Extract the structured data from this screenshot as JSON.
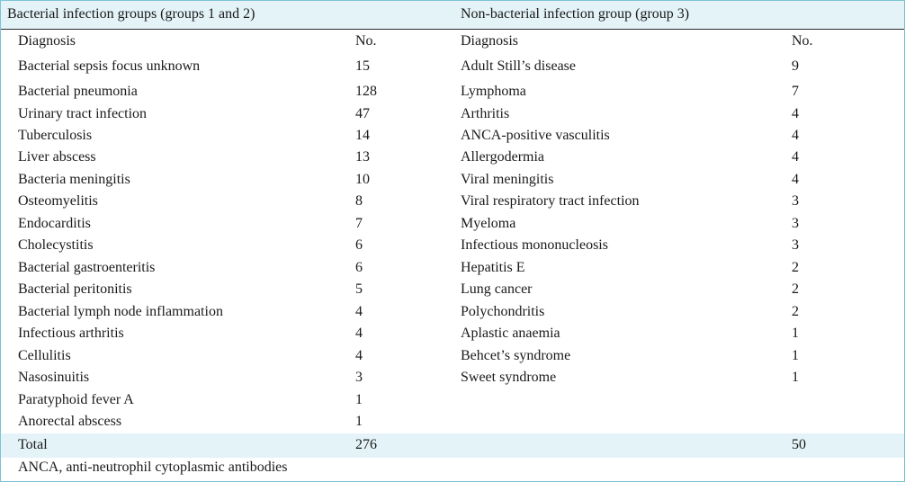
{
  "table": {
    "group_headers": {
      "left": "Bacterial infection groups (groups 1 and 2)",
      "right": "Non-bacterial infection group (group 3)"
    },
    "column_headers": {
      "diagnosis": "Diagnosis",
      "count": "No."
    },
    "left_rows": [
      {
        "diagnosis": "Bacterial sepsis focus unknown",
        "count": "15"
      },
      {
        "diagnosis": "Bacterial pneumonia",
        "count": "128"
      },
      {
        "diagnosis": "Urinary tract infection",
        "count": "47"
      },
      {
        "diagnosis": "Tuberculosis",
        "count": "14"
      },
      {
        "diagnosis": "Liver abscess",
        "count": "13"
      },
      {
        "diagnosis": "Bacteria meningitis",
        "count": "10"
      },
      {
        "diagnosis": "Osteomyelitis",
        "count": "8"
      },
      {
        "diagnosis": "Endocarditis",
        "count": "7"
      },
      {
        "diagnosis": "Cholecystitis",
        "count": "6"
      },
      {
        "diagnosis": "Bacterial gastroenteritis",
        "count": "6"
      },
      {
        "diagnosis": "Bacterial peritonitis",
        "count": "5"
      },
      {
        "diagnosis": "Bacterial lymph node inflammation",
        "count": "4"
      },
      {
        "diagnosis": "Infectious arthritis",
        "count": "4"
      },
      {
        "diagnosis": "Cellulitis",
        "count": "4"
      },
      {
        "diagnosis": "Nasosinuitis",
        "count": "3"
      },
      {
        "diagnosis": "Paratyphoid fever A",
        "count": "1"
      },
      {
        "diagnosis": "Anorectal abscess",
        "count": "1"
      }
    ],
    "right_rows": [
      {
        "diagnosis": "Adult Still’s disease",
        "count": "9"
      },
      {
        "diagnosis": "Lymphoma",
        "count": "7"
      },
      {
        "diagnosis": "Arthritis",
        "count": "4"
      },
      {
        "diagnosis": "ANCA-positive vasculitis",
        "count": "4"
      },
      {
        "diagnosis": "Allergodermia",
        "count": "4"
      },
      {
        "diagnosis": "Viral meningitis",
        "count": "4"
      },
      {
        "diagnosis": "Viral respiratory tract infection",
        "count": "3"
      },
      {
        "diagnosis": "Myeloma",
        "count": "3"
      },
      {
        "diagnosis": "Infectious mononucleosis",
        "count": "3"
      },
      {
        "diagnosis": "Hepatitis E",
        "count": "2"
      },
      {
        "diagnosis": "Lung cancer",
        "count": "2"
      },
      {
        "diagnosis": "Polychondritis",
        "count": "2"
      },
      {
        "diagnosis": "Aplastic anaemia",
        "count": "1"
      },
      {
        "diagnosis": "Behcet’s syndrome",
        "count": "1"
      },
      {
        "diagnosis": "Sweet syndrome",
        "count": "1"
      }
    ],
    "total": {
      "label": "Total",
      "left_count": "276",
      "right_count": "50"
    },
    "footnote": "ANCA, anti-neutrophil cytoplasmic antibodies"
  }
}
